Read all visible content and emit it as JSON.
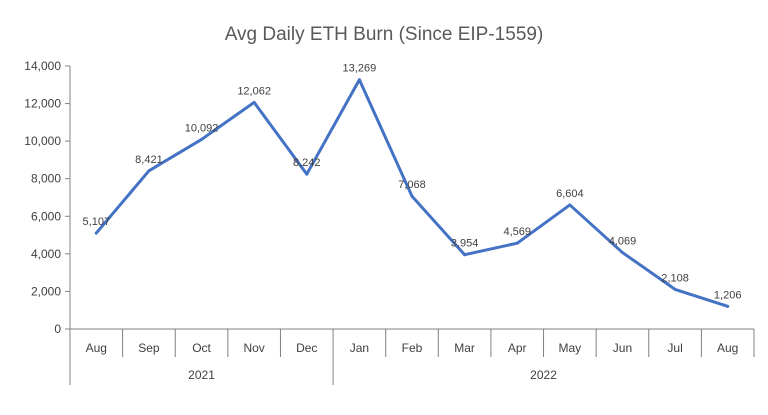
{
  "chart_data": {
    "type": "line",
    "title": "Avg Daily ETH Burn (Since EIP-1559)",
    "xlabel": "",
    "ylabel": "",
    "categories": [
      "Aug",
      "Sep",
      "Oct",
      "Nov",
      "Dec",
      "Jan",
      "Feb",
      "Mar",
      "Apr",
      "May",
      "Jun",
      "Jul",
      "Aug"
    ],
    "years": [
      {
        "label": "2021",
        "start_index": 0,
        "end_index": 4
      },
      {
        "label": "2022",
        "start_index": 5,
        "end_index": 12
      }
    ],
    "series": [
      {
        "values": [
          5107,
          8421,
          10092,
          12062,
          8242,
          13269,
          7068,
          3954,
          4569,
          6604,
          4069,
          2108,
          1206
        ],
        "data_labels": [
          "5,107",
          "8,421",
          "10,092",
          "12,062",
          "8,242",
          "13,269",
          "7,068",
          "3,954",
          "4,569",
          "6,604",
          "4,069",
          "2,108",
          "1,206"
        ],
        "color": "#4472C4"
      }
    ],
    "ylim": [
      0,
      14000
    ],
    "yticks": [
      0,
      2000,
      4000,
      6000,
      8000,
      10000,
      12000,
      14000
    ],
    "ytick_labels": [
      "0",
      "2,000",
      "4,000",
      "6,000",
      "8,000",
      "10,000",
      "12,000",
      "14,000"
    ],
    "grid": false,
    "legend": "none",
    "colors": {
      "line": "#4472C4",
      "axis": "#808080",
      "text": "#404040",
      "title": "#595959"
    }
  }
}
